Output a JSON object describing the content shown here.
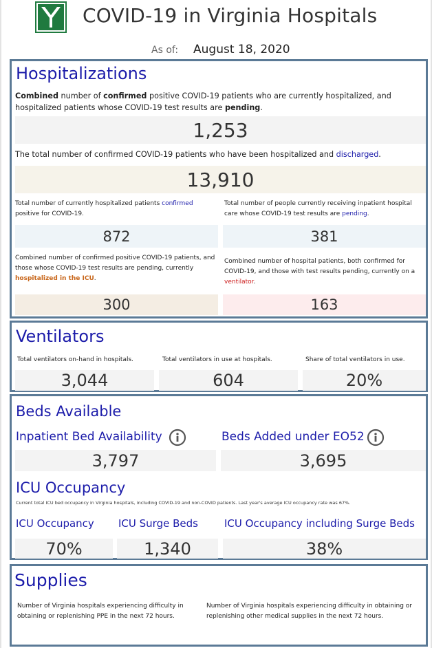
{
  "header": {
    "logo_letter": "Y",
    "title": "COVID-19 in Virginia Hospitals",
    "asof_label": "As of:",
    "asof_date": "August 18, 2020"
  },
  "hospitalizations": {
    "title": "Hospitalizations",
    "combined_desc": {
      "p1": "Combined",
      "p2": " number of ",
      "p3": "confirmed",
      "p4": " positive COVID-19 patients who are currently hospitalized, and hospitalized patients whose COVID-19 test results are ",
      "p5": "pending",
      "p6": "."
    },
    "combined_value": "1,253",
    "discharged_desc": {
      "p1": "The total number of confirmed COVID-19 patients who have been hospitalized and ",
      "p2": "discharged",
      "p3": "."
    },
    "discharged_value": "13,910",
    "confirmed_desc": {
      "p1": "Total number of currently hospitalized patients ",
      "p2": "confirmed",
      "p3": " positive for COVID-19."
    },
    "confirmed_value": "872",
    "pending_desc": {
      "p1": "Total number of people currently receiving inpatient hospital care whose COVID-19 test results are ",
      "p2": "pending",
      "p3": "."
    },
    "pending_value": "381",
    "icu_desc": {
      "p1": "Combined number of confirmed positive COVID-19 patients, and those whose COVID-19 test results are pending, currently ",
      "p2": "hospitalized in the ICU",
      "p3": "."
    },
    "icu_value": "300",
    "vent_desc": {
      "p1": "Combined number of hospital patients, both confirmed for COVID-19, and those with test results pending, currently on a ",
      "p2": "ventilator",
      "p3": "."
    },
    "vent_value": "163"
  },
  "ventilators": {
    "title": "Ventilators",
    "onhand_label": "Total ventilators on-hand in hospitals.",
    "onhand_value": "3,044",
    "inuse_label": "Total ventilators in use at hospitals.",
    "inuse_value": "604",
    "share_label": "Share of total ventilators in use.",
    "share_value": "20%"
  },
  "beds": {
    "title": "Beds Available",
    "inpatient_label": "Inpatient Bed Availability",
    "inpatient_value": "3,797",
    "eo52_label": "Beds Added under EO52",
    "eo52_value": "3,695",
    "icu_title": "ICU Occupancy",
    "icu_note": "Current total ICU bed occupancy in Virginia hospitals, including COVID-19 and non-COVID patients. Last year's average ICU occupancy rate was 67%.",
    "icu_occ_label": "ICU Occupancy",
    "icu_occ_value": "70%",
    "surge_label": "ICU Surge Beds",
    "surge_value": "1,340",
    "incl_label": "ICU Occupancy including Surge Beds",
    "incl_value": "38%"
  },
  "supplies": {
    "title": "Supplies",
    "ppe_desc": "Number of Virginia hospitals experiencing difficulty in obtaining or replenishing PPE in the next 72 hours.",
    "other_desc": "Number of Virginia hospitals experiencing difficulty in obtaining or replenishing other medical supplies in the next 72 hours."
  },
  "colors": {
    "section_title": "#1c1caa",
    "panel_border": "#5b7a96",
    "logo_green": "#1f7a3f",
    "box_gray": "#f3f3f3",
    "box_cream": "#f6f3ea",
    "box_blue": "#eef4f8",
    "box_tan": "#f4ede3",
    "box_pink": "#fdeced"
  },
  "icons": {
    "logo": "vhhc-logo-icon",
    "info": "info-circle-icon"
  }
}
